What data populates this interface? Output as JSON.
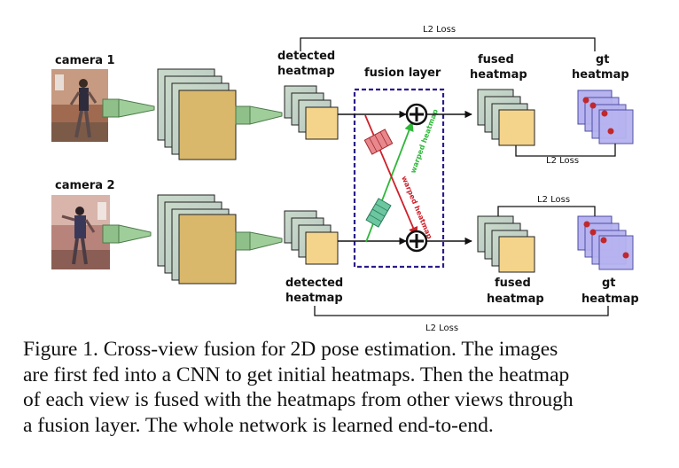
{
  "cameras": [
    {
      "label": "camera 1"
    },
    {
      "label": "camera 2"
    }
  ],
  "labels": {
    "detected_top": [
      "detected",
      "heatmap"
    ],
    "detected_bottom": [
      "detected",
      "heatmap"
    ],
    "fusion_layer": "fusion layer",
    "fused_top": [
      "fused",
      "heatmap"
    ],
    "fused_bottom": [
      "fused",
      "heatmap"
    ],
    "gt_top": [
      "gt",
      "heatmap"
    ],
    "gt_bottom": [
      "gt",
      "heatmap"
    ],
    "warped_green": "warped heatmap",
    "warped_red": "warped heatmap"
  },
  "losses": {
    "top_outer": "L2 Loss",
    "top_inner": "L2 Loss",
    "bottom_inner": "L2 Loss",
    "bottom_outer": "L2 Loss"
  },
  "caption": {
    "lines": [
      "Figure 1. Cross-view fusion for 2D pose estimation.  The images",
      "are first fed into a CNN to get initial heatmaps. Then the heatmap",
      "of each view is fused with the heatmaps from other views through",
      "a fusion layer. The whole network is learned end-to-end."
    ]
  },
  "colors": {
    "feature_map": "#d9b86c",
    "feature_edge_light": "#c8d8cc",
    "cnn_cone": "#9fce9b",
    "fusion_box": "#2a1c8c",
    "gt_fill": "#b6b3f0",
    "keypoint": "#c0282c",
    "warp_green": "#2fb83a",
    "warp_red": "#d0202a"
  }
}
